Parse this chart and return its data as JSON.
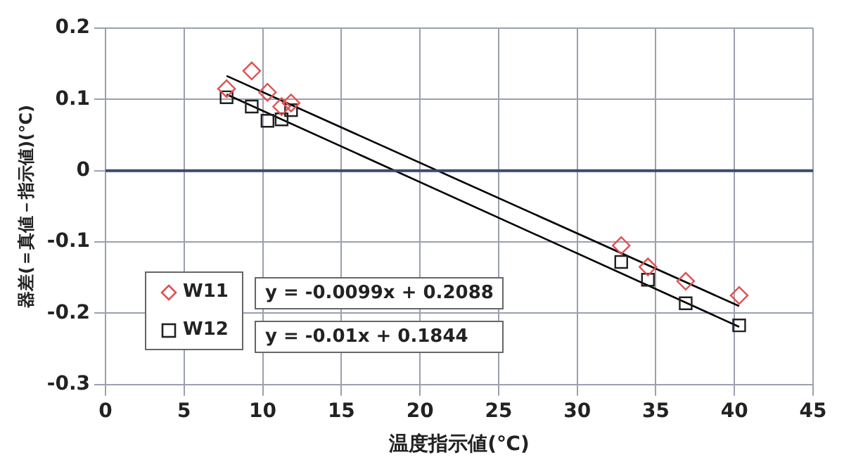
{
  "chart_data": {
    "type": "scatter",
    "xlabel": "温度指示値(℃)",
    "ylabel": "器差(＝真値－指示値)(℃)",
    "xlim": [
      0,
      45
    ],
    "xticks": [
      0,
      5,
      10,
      15,
      20,
      25,
      30,
      35,
      40,
      45
    ],
    "ylim": [
      -0.3,
      0.2
    ],
    "yticks": [
      -0.3,
      -0.2,
      -0.1,
      0,
      0.1,
      0.2
    ],
    "grid": true,
    "legend": "bottom left",
    "ref_lines": [
      {
        "axis": "y",
        "value": 0,
        "color": "#3a4a6a"
      }
    ],
    "annotations": [
      "y = -0.0099x + 0.2088",
      "y = -0.01x + 0.1844"
    ],
    "series": [
      {
        "name": "W11",
        "marker": "diamond",
        "color": "#e05050",
        "x": [
          7.7,
          9.3,
          10.3,
          11.2,
          11.8,
          32.8,
          34.5,
          36.9,
          40.3
        ],
        "values": [
          0.115,
          0.14,
          0.11,
          0.09,
          0.095,
          -0.105,
          -0.135,
          -0.155,
          -0.175
        ]
      },
      {
        "name": "W12",
        "marker": "square",
        "color": "#202020",
        "x": [
          7.7,
          9.3,
          10.3,
          11.2,
          11.8,
          32.8,
          34.5,
          36.9,
          40.3
        ],
        "values": [
          0.103,
          0.09,
          0.07,
          0.072,
          0.085,
          -0.128,
          -0.153,
          -0.186,
          -0.217
        ]
      },
      {
        "type": "line",
        "marker": "none",
        "color": "#000000",
        "x": [
          7.7,
          40.3
        ],
        "values": [
          0.133,
          -0.19
        ]
      },
      {
        "type": "line",
        "marker": "none",
        "color": "#000000",
        "x": [
          7.7,
          40.3
        ],
        "values": [
          0.107,
          -0.219
        ]
      }
    ]
  }
}
